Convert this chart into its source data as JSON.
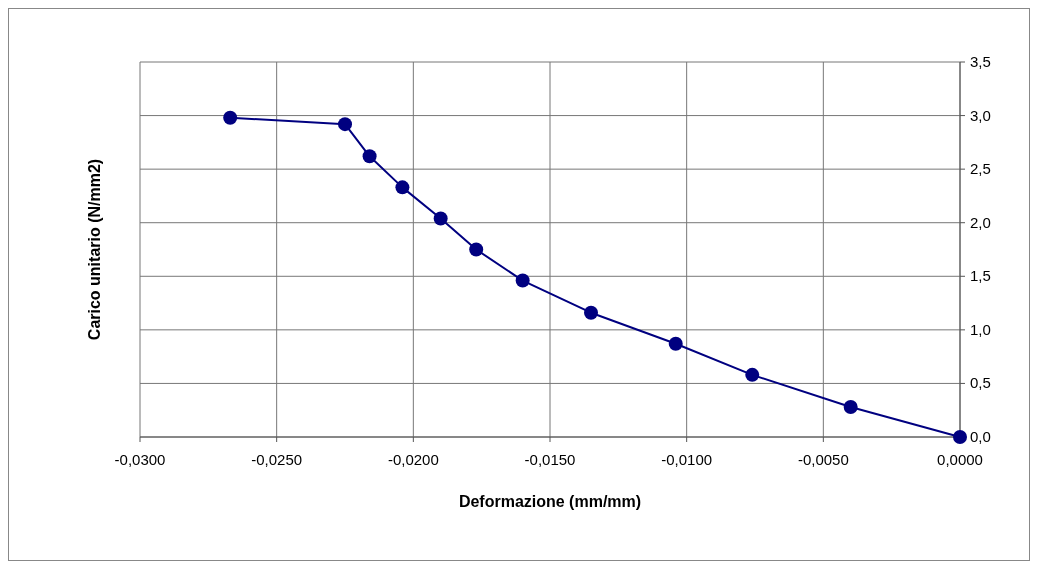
{
  "chart_data": {
    "type": "line",
    "xlabel": "Deformazione (mm/mm)",
    "ylabel": "Carico unitario (N/mm2)",
    "x": [
      -0.0267,
      -0.0225,
      -0.0216,
      -0.0204,
      -0.019,
      -0.0177,
      -0.016,
      -0.0135,
      -0.0104,
      -0.0076,
      -0.004,
      0
    ],
    "series": [
      {
        "color": "#000080",
        "values": [
          2.98,
          2.92,
          2.62,
          2.33,
          2.04,
          1.75,
          1.46,
          1.16,
          0.87,
          0.58,
          0.28,
          0
        ]
      }
    ],
    "xlim": [
      -0.03,
      0
    ],
    "xticks": [
      {
        "value": -0.03,
        "label": "-0,0300"
      },
      {
        "value": -0.025,
        "label": "-0,0250"
      },
      {
        "value": -0.02,
        "label": "-0,0200"
      },
      {
        "value": -0.015,
        "label": "-0,0150"
      },
      {
        "value": -0.01,
        "label": "-0,0100"
      },
      {
        "value": -0.005,
        "label": "-0,0050"
      },
      {
        "value": 0,
        "label": "0,0000"
      }
    ],
    "ylim": [
      0,
      3.5
    ],
    "yticks": [
      {
        "value": 0,
        "label": "0,0"
      },
      {
        "value": 0.5,
        "label": "0,5"
      },
      {
        "value": 1,
        "label": "1,0"
      },
      {
        "value": 1.5,
        "label": "1,5"
      },
      {
        "value": 2,
        "label": "2,0"
      },
      {
        "value": 2.5,
        "label": "2,5"
      },
      {
        "value": 3,
        "label": "3,0"
      },
      {
        "value": 3.5,
        "label": "3,5"
      }
    ],
    "grid": true,
    "marker": "circle",
    "line_style": "solid"
  }
}
